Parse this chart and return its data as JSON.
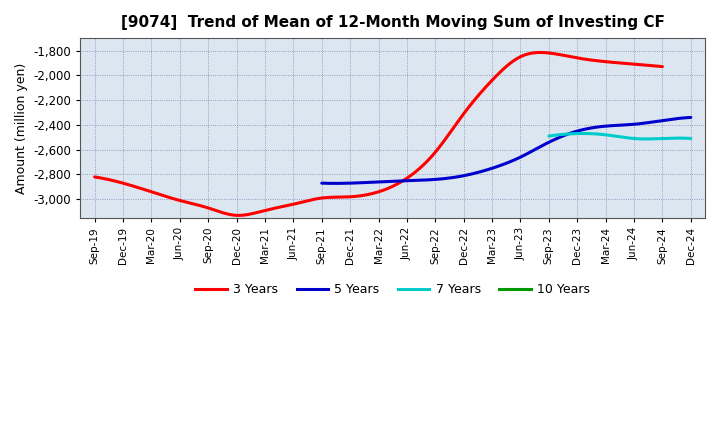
{
  "title": "[9074]  Trend of Mean of 12-Month Moving Sum of Investing CF",
  "ylabel": "Amount (million yen)",
  "background_color": "#ffffff",
  "plot_bg_color": "#dce6f0",
  "grid_color": "#7777aa",
  "ylim": [
    -3150,
    -1700
  ],
  "yticks": [
    -3000,
    -2800,
    -2600,
    -2400,
    -2200,
    -2000,
    -1800
  ],
  "x_labels": [
    "Sep-19",
    "Dec-19",
    "Mar-20",
    "Jun-20",
    "Sep-20",
    "Dec-20",
    "Mar-21",
    "Jun-21",
    "Sep-21",
    "Dec-21",
    "Mar-22",
    "Jun-22",
    "Sep-22",
    "Dec-22",
    "Mar-23",
    "Jun-23",
    "Sep-23",
    "Dec-23",
    "Mar-24",
    "Jun-24",
    "Sep-24",
    "Dec-24"
  ],
  "series": {
    "3 Years": {
      "color": "#ff0000",
      "linewidth": 2.2,
      "data_x": [
        0,
        1,
        2,
        3,
        4,
        5,
        6,
        7,
        8,
        9,
        10,
        11,
        12,
        13,
        14,
        15,
        16,
        17,
        18,
        19,
        20
      ],
      "data_y": [
        -2820,
        -2870,
        -2940,
        -3010,
        -3070,
        -3130,
        -3090,
        -3040,
        -2990,
        -2980,
        -2940,
        -2830,
        -2620,
        -2310,
        -2040,
        -1850,
        -1820,
        -1860,
        -1890,
        -1910,
        -1930
      ]
    },
    "5 Years": {
      "color": "#0000cc",
      "linewidth": 2.2,
      "data_x": [
        8,
        9,
        10,
        11,
        12,
        13,
        14,
        15,
        16,
        17,
        18,
        19,
        20,
        21
      ],
      "data_y": [
        -2870,
        -2870,
        -2860,
        -2850,
        -2840,
        -2810,
        -2750,
        -2660,
        -2540,
        -2450,
        -2410,
        -2395,
        -2365,
        -2340
      ]
    },
    "7 Years": {
      "color": "#00cccc",
      "linewidth": 2.2,
      "data_x": [
        16,
        17,
        18,
        19,
        20,
        21
      ],
      "data_y": [
        -2490,
        -2470,
        -2480,
        -2510,
        -2510,
        -2510
      ]
    },
    "10 Years": {
      "color": "#009900",
      "linewidth": 2.2,
      "data_x": [],
      "data_y": []
    }
  },
  "legend_labels": [
    "3 Years",
    "5 Years",
    "7 Years",
    "10 Years"
  ],
  "legend_colors": [
    "#ff0000",
    "#0000cc",
    "#00cccc",
    "#009900"
  ]
}
